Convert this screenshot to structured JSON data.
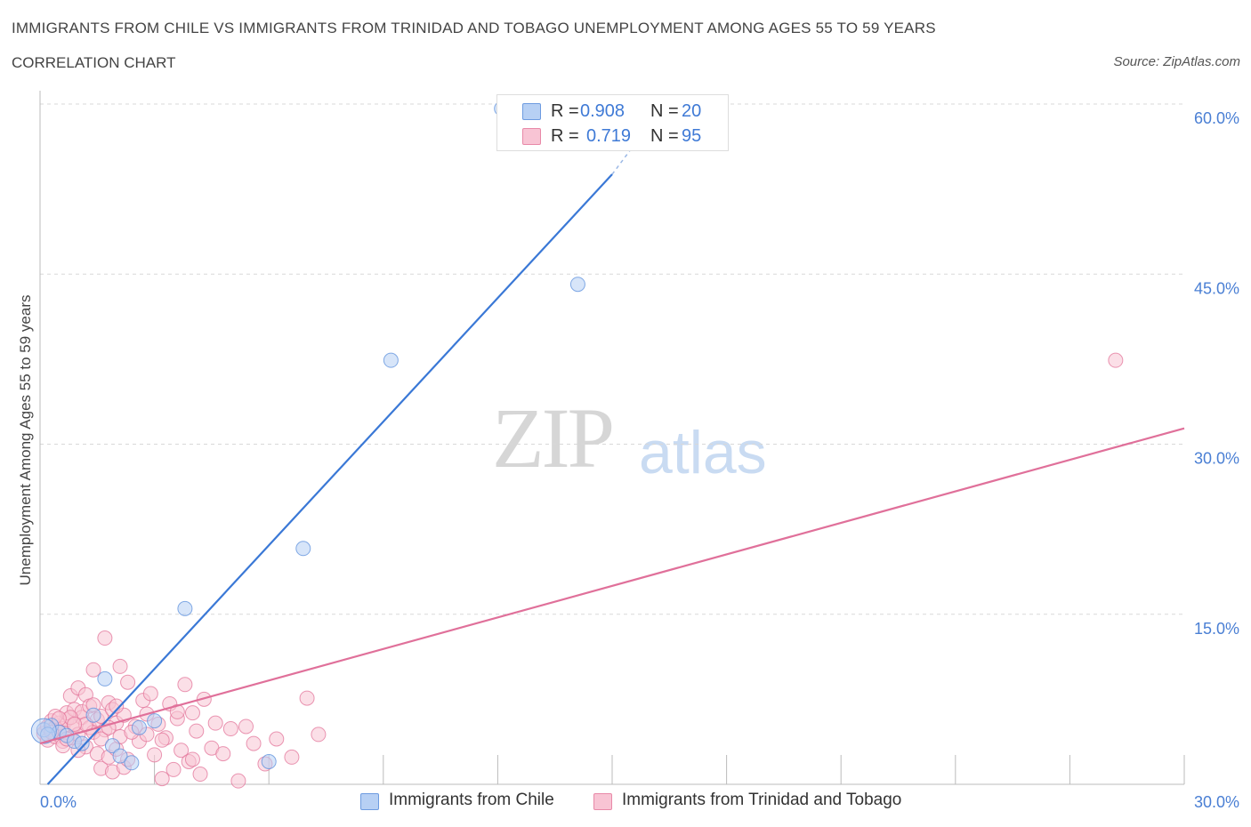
{
  "header": {
    "title": "IMMIGRANTS FROM CHILE VS IMMIGRANTS FROM TRINIDAD AND TOBAGO UNEMPLOYMENT AMONG AGES 55 TO 59 YEARS",
    "subtitle": "CORRELATION CHART",
    "source": "Source: ZipAtlas.com"
  },
  "watermark": {
    "zip": "ZIP",
    "atlas": "atlas"
  },
  "legend": {
    "rows": [
      {
        "r_label": "R =",
        "r_value": "0.908",
        "n_label": "N =",
        "n_value": "20",
        "color": "#b7d0f4",
        "border": "#6d9be0"
      },
      {
        "r_label": "R =",
        "r_value": "0.719",
        "n_label": "N =",
        "n_value": "95",
        "color": "#f8c4d4",
        "border": "#e889a8"
      }
    ]
  },
  "bottom_legend": {
    "items": [
      {
        "label": "Immigrants from Chile",
        "color": "#b7d0f4",
        "border": "#6d9be0"
      },
      {
        "label": "Immigrants from Trinidad and Tobago",
        "color": "#f8c4d4",
        "border": "#e889a8"
      }
    ]
  },
  "chart_data": {
    "type": "scatter",
    "title": "IMMIGRANTS FROM CHILE VS IMMIGRANTS FROM TRINIDAD AND TOBAGO UNEMPLOYMENT AMONG AGES 55 TO 59 YEARS",
    "xlabel": "",
    "ylabel": "Unemployment Among Ages 55 to 59 years",
    "xlim": [
      0,
      30
    ],
    "ylim": [
      0,
      60
    ],
    "x_tick_labels": [
      "0.0%",
      "30.0%"
    ],
    "y_ticks": [
      15,
      30,
      45,
      60
    ],
    "y_tick_labels": [
      "15.0%",
      "30.0%",
      "45.0%",
      "60.0%"
    ],
    "grid": true,
    "legend_position": "top-center",
    "series": [
      {
        "name": "Immigrants from Chile",
        "color": "#5b8fdc",
        "fill": "#b7d0f4",
        "points": [
          [
            0.1,
            4.8
          ],
          [
            0.3,
            5.2
          ],
          [
            0.5,
            4.6
          ],
          [
            0.7,
            4.3
          ],
          [
            0.9,
            3.8
          ],
          [
            1.1,
            3.6
          ],
          [
            1.4,
            6.1
          ],
          [
            1.7,
            9.3
          ],
          [
            1.9,
            3.4
          ],
          [
            2.1,
            2.5
          ],
          [
            2.4,
            1.9
          ],
          [
            2.6,
            5.0
          ],
          [
            3.0,
            5.6
          ],
          [
            3.8,
            15.5
          ],
          [
            6.0,
            2.0
          ],
          [
            6.9,
            20.8
          ],
          [
            9.2,
            37.4
          ],
          [
            14.1,
            44.1
          ],
          [
            12.1,
            59.6
          ],
          [
            0.2,
            4.4
          ]
        ],
        "trend": {
          "x": [
            0.2,
            15.0
          ],
          "y": [
            0.0,
            53.8
          ],
          "dashed_to": [
            15.6,
            56.5
          ]
        }
      },
      {
        "name": "Immigrants from Trinidad and Tobago",
        "color": "#e3749a",
        "fill": "#f8c4d4",
        "points": [
          [
            0.1,
            4.5
          ],
          [
            0.2,
            5.1
          ],
          [
            0.2,
            3.9
          ],
          [
            0.3,
            4.8
          ],
          [
            0.3,
            5.6
          ],
          [
            0.4,
            4.2
          ],
          [
            0.4,
            5.0
          ],
          [
            0.5,
            4.6
          ],
          [
            0.5,
            5.4
          ],
          [
            0.6,
            3.8
          ],
          [
            0.6,
            4.9
          ],
          [
            0.7,
            5.7
          ],
          [
            0.7,
            6.3
          ],
          [
            0.8,
            4.1
          ],
          [
            0.8,
            7.8
          ],
          [
            0.9,
            5.2
          ],
          [
            0.9,
            6.6
          ],
          [
            1.0,
            4.4
          ],
          [
            1.0,
            8.5
          ],
          [
            1.1,
            5.9
          ],
          [
            1.1,
            6.4
          ],
          [
            1.2,
            3.3
          ],
          [
            1.2,
            7.9
          ],
          [
            1.3,
            5.0
          ],
          [
            1.3,
            6.9
          ],
          [
            1.4,
            4.6
          ],
          [
            1.4,
            10.1
          ],
          [
            1.5,
            5.7
          ],
          [
            1.5,
            2.7
          ],
          [
            1.6,
            6.0
          ],
          [
            1.6,
            1.4
          ],
          [
            1.7,
            12.9
          ],
          [
            1.7,
            4.8
          ],
          [
            1.8,
            7.2
          ],
          [
            1.8,
            2.4
          ],
          [
            1.9,
            6.6
          ],
          [
            1.9,
            1.1
          ],
          [
            2.0,
            5.4
          ],
          [
            2.0,
            3.1
          ],
          [
            2.1,
            10.4
          ],
          [
            2.1,
            4.2
          ],
          [
            2.2,
            6.1
          ],
          [
            2.2,
            1.5
          ],
          [
            2.3,
            9.0
          ],
          [
            2.3,
            2.2
          ],
          [
            2.5,
            5.1
          ],
          [
            2.6,
            3.8
          ],
          [
            2.7,
            7.4
          ],
          [
            2.8,
            4.4
          ],
          [
            2.9,
            8.0
          ],
          [
            3.0,
            2.6
          ],
          [
            3.1,
            5.3
          ],
          [
            3.2,
            0.5
          ],
          [
            3.3,
            4.1
          ],
          [
            3.4,
            7.1
          ],
          [
            3.5,
            1.3
          ],
          [
            3.6,
            5.8
          ],
          [
            3.7,
            3.0
          ],
          [
            3.8,
            8.8
          ],
          [
            3.9,
            2.0
          ],
          [
            4.0,
            6.3
          ],
          [
            4.1,
            4.7
          ],
          [
            4.2,
            0.9
          ],
          [
            4.3,
            7.5
          ],
          [
            4.5,
            3.2
          ],
          [
            4.6,
            5.4
          ],
          [
            4.8,
            2.7
          ],
          [
            5.0,
            4.9
          ],
          [
            5.2,
            0.3
          ],
          [
            5.4,
            5.1
          ],
          [
            5.6,
            3.6
          ],
          [
            5.9,
            1.8
          ],
          [
            6.2,
            4.0
          ],
          [
            6.6,
            2.4
          ],
          [
            7.0,
            7.6
          ],
          [
            7.3,
            4.4
          ],
          [
            0.4,
            6.0
          ],
          [
            0.6,
            3.4
          ],
          [
            0.8,
            5.9
          ],
          [
            1.0,
            3.0
          ],
          [
            1.2,
            5.3
          ],
          [
            1.4,
            7.0
          ],
          [
            1.6,
            4.0
          ],
          [
            1.8,
            5.0
          ],
          [
            2.0,
            6.9
          ],
          [
            2.4,
            4.6
          ],
          [
            2.8,
            6.2
          ],
          [
            3.2,
            3.9
          ],
          [
            3.6,
            6.4
          ],
          [
            4.0,
            2.2
          ],
          [
            28.2,
            37.4
          ],
          [
            0.3,
            4.6
          ],
          [
            0.5,
            5.8
          ],
          [
            0.7,
            4.0
          ],
          [
            0.9,
            5.3
          ]
        ],
        "trend": {
          "x": [
            0.0,
            30.0
          ],
          "y": [
            3.6,
            31.4
          ]
        }
      }
    ]
  }
}
